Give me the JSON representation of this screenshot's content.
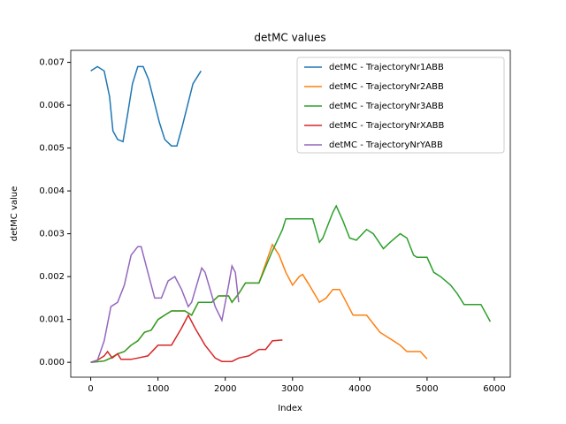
{
  "chart_data": {
    "type": "line",
    "title": "detMC values",
    "x_label": "Index",
    "y_label": "detMC value",
    "xlim": [
      -297,
      6237
    ],
    "ylim": [
      -0.000347,
      0.00728
    ],
    "xticks": [
      0,
      1000,
      2000,
      3000,
      4000,
      5000,
      6000
    ],
    "yticks": [
      {
        "value": 0,
        "label": "0.000"
      },
      {
        "value": 0.001,
        "label": "0.001"
      },
      {
        "value": 0.002,
        "label": "0.002"
      },
      {
        "value": 0.003,
        "label": "0.003"
      },
      {
        "value": 0.004,
        "label": "0.004"
      },
      {
        "value": 0.005,
        "label": "0.005"
      },
      {
        "value": 0.006,
        "label": "0.006"
      },
      {
        "value": 0.007,
        "label": "0.007"
      }
    ],
    "legend": "upper right",
    "series": [
      {
        "name": "detMC - TrajectoryNr1ABB",
        "color": "#1f77b4",
        "x": [
          0,
          100,
          200,
          280,
          330,
          400,
          480,
          550,
          620,
          700,
          780,
          860,
          940,
          1020,
          1100,
          1200,
          1280,
          1360,
          1440,
          1520,
          1640
        ],
        "values": [
          0.0068,
          0.0069,
          0.0068,
          0.0062,
          0.0054,
          0.0052,
          0.00515,
          0.0058,
          0.0065,
          0.0069,
          0.0069,
          0.0066,
          0.0061,
          0.0056,
          0.0052,
          0.00505,
          0.00505,
          0.0055,
          0.006,
          0.0065,
          0.0068
        ]
      },
      {
        "name": "detMC - TrajectoryNr2ABB",
        "color": "#ff7f0e",
        "x": [
          0,
          200,
          300,
          400,
          500,
          600,
          700,
          800,
          900,
          1000,
          1100,
          1200,
          1400,
          1500,
          1600,
          1800,
          1900,
          2050,
          2100,
          2200,
          2300,
          2500,
          2700,
          2800,
          2900,
          3000,
          3100,
          3150,
          3250,
          3400,
          3500,
          3600,
          3700,
          3800,
          3900,
          4100,
          4200,
          4300,
          4500,
          4600,
          4700,
          4900,
          5000
        ],
        "values": [
          0,
          3e-05,
          0.0001,
          0.0002,
          0.00025,
          0.0004,
          0.0005,
          0.0007,
          0.00075,
          0.001,
          0.0011,
          0.0012,
          0.0012,
          0.0011,
          0.0014,
          0.0014,
          0.00155,
          0.00155,
          0.0014,
          0.0016,
          0.00185,
          0.00185,
          0.00275,
          0.0025,
          0.0021,
          0.0018,
          0.002,
          0.00205,
          0.0018,
          0.0014,
          0.0015,
          0.0017,
          0.0017,
          0.0014,
          0.0011,
          0.0011,
          0.0009,
          0.0007,
          0.0005,
          0.0004,
          0.00025,
          0.00025,
          8e-05
        ]
      },
      {
        "name": "detMC - TrajectoryNr3ABB",
        "color": "#2ca02c",
        "x": [
          0,
          200,
          300,
          400,
          500,
          600,
          700,
          800,
          900,
          1000,
          1100,
          1200,
          1400,
          1500,
          1600,
          1800,
          1900,
          2050,
          2100,
          2200,
          2300,
          2500,
          2700,
          2850,
          2900,
          3300,
          3400,
          3450,
          3600,
          3650,
          3750,
          3850,
          3950,
          4100,
          4200,
          4350,
          4450,
          4600,
          4700,
          4800,
          4850,
          5000,
          5100,
          5200,
          5350,
          5450,
          5550,
          5800,
          5940
        ],
        "values": [
          0,
          3e-05,
          0.0001,
          0.0002,
          0.00025,
          0.0004,
          0.0005,
          0.0007,
          0.00075,
          0.001,
          0.0011,
          0.0012,
          0.0012,
          0.0011,
          0.0014,
          0.0014,
          0.00155,
          0.00155,
          0.0014,
          0.0016,
          0.00185,
          0.00185,
          0.0026,
          0.0031,
          0.00335,
          0.00335,
          0.0028,
          0.0029,
          0.0035,
          0.00365,
          0.0033,
          0.0029,
          0.00285,
          0.0031,
          0.003,
          0.00265,
          0.0028,
          0.003,
          0.0029,
          0.0025,
          0.00245,
          0.00245,
          0.0021,
          0.002,
          0.0018,
          0.0016,
          0.00135,
          0.00135,
          0.00095
        ]
      },
      {
        "name": "detMC - TrajectoryNrXABB",
        "color": "#d62728",
        "x": [
          0,
          100,
          200,
          250,
          320,
          400,
          450,
          600,
          700,
          850,
          1000,
          1200,
          1350,
          1450,
          1550,
          1700,
          1850,
          1950,
          2100,
          2200,
          2350,
          2500,
          2600,
          2700,
          2850
        ],
        "values": [
          0,
          5e-05,
          0.00015,
          0.00025,
          0.0001,
          0.0002,
          7e-05,
          7e-05,
          0.0001,
          0.00015,
          0.0004,
          0.0004,
          0.0008,
          0.0011,
          0.0008,
          0.0004,
          0.0001,
          2e-05,
          2e-05,
          0.0001,
          0.00015,
          0.0003,
          0.0003,
          0.0005,
          0.00052
        ]
      },
      {
        "name": "detMC - TrajectoryNrYABB",
        "color": "#9467bd",
        "x": [
          0,
          100,
          200,
          300,
          400,
          500,
          600,
          700,
          750,
          850,
          950,
          1050,
          1150,
          1250,
          1350,
          1450,
          1500,
          1650,
          1700,
          1850,
          1950,
          2050,
          2100,
          2150,
          2200
        ],
        "values": [
          0,
          5e-05,
          0.0005,
          0.0013,
          0.0014,
          0.0018,
          0.0025,
          0.0027,
          0.0027,
          0.0021,
          0.0015,
          0.0015,
          0.0019,
          0.002,
          0.0017,
          0.0013,
          0.0014,
          0.0022,
          0.0021,
          0.0013,
          0.00098,
          0.0018,
          0.00225,
          0.0021,
          0.0014
        ]
      }
    ]
  }
}
